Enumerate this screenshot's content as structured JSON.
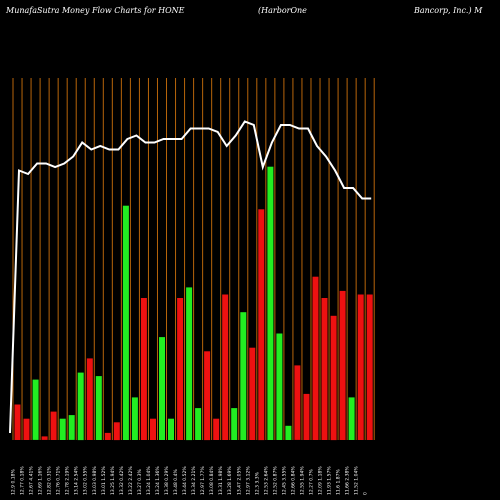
{
  "header": {
    "left": "MunafaSutra  Money Flow  Charts for HONE",
    "middle": "(HarborOne",
    "right": "Bancorp, Inc.) M"
  },
  "colors": {
    "background": "#000000",
    "grid": "#b8650a",
    "up": "#22ee22",
    "down": "#ee1111",
    "price_line": "#ffffff",
    "text": "#ffffff"
  },
  "chart_data": {
    "type": "bar",
    "title": "MunafaSutra  Money Flow  Charts for HONE (HarborOne Bancorp, Inc.) M",
    "grid": true,
    "ylim": [
      0,
      100
    ],
    "price_ylim": [
      0,
      100
    ],
    "categories": [
      "0",
      "12.9 0.18%",
      "12.77 0.18%",
      "12.67 4.41%",
      "12.69 1.16%",
      "12.82 0.31%",
      "12.76 0.71%",
      "12.78 2.19%",
      "13.14 2.54%",
      "13.02 0.55%",
      "13.03 0.98%",
      "13.01 1.52%",
      "13.25 1.94%",
      "13.32 0.42%",
      "13.22 2.42%",
      "13.27 0.3%",
      "13.24 1.04%",
      "13.24 1.36%",
      "13.38 0.29%",
      "13.48 0.4%",
      "13.44 0.52%",
      "13.34 2.21%",
      "12.97 1.77%",
      "13.08 0.84%",
      "13.31 1.98%",
      "13.28 1.69%",
      "13.47 2.05%",
      "12.97 3.12%",
      "12.3 3.3%",
      "12.53 2.64%",
      "12.52 0.87%",
      "12.45 3.55%",
      "12.66 0.84%",
      "12.55 1.94%",
      "12.27 0.7%",
      "12.09 1.18%",
      "11.93 1.57%",
      "11.6 1.87%",
      "11.66 2.38%",
      "11.52 1.04%"
    ],
    "tick_labels": [
      "12.9 0.18%",
      "12.77 0.18%",
      "12.67 4.41%",
      "12.69 1.16%",
      "12.82 0.31%",
      "12.76 0.71%",
      "12.78 2.19%",
      "13.14 2.54%",
      "13.02 0.55%",
      "13.03 0.98%",
      "13.01 1.52%",
      "13.25 1.94%",
      "13.32 0.42%",
      "13.22 2.42%",
      "13.27 0.3%",
      "13.24 1.04%",
      "13.24 1.36%",
      "13.38 0.29%",
      "13.48 0.4%",
      "13.44 0.52%",
      "13.34 2.21%",
      "12.97 1.77%",
      "13.08 0.84%",
      "13.31 1.98%",
      "13.28 1.69%",
      "13.47 2.05%",
      "12.97 3.12%",
      "12.3 3.3%",
      "12.53 2.64%",
      "12.52 0.87%",
      "12.45 3.55%",
      "12.66 0.84%",
      "12.55 1.94%",
      "12.27 0.7%",
      "12.09 1.18%",
      "11.93 1.57%",
      "11.6 1.87%",
      "11.66 2.38%",
      "11.52 1.04%",
      "0"
    ],
    "bars": [
      {
        "value": 10,
        "dir": "down"
      },
      {
        "value": 6,
        "dir": "down"
      },
      {
        "value": 17,
        "dir": "up"
      },
      {
        "value": 1,
        "dir": "down"
      },
      {
        "value": 8,
        "dir": "down"
      },
      {
        "value": 6,
        "dir": "up"
      },
      {
        "value": 7,
        "dir": "up"
      },
      {
        "value": 19,
        "dir": "up"
      },
      {
        "value": 23,
        "dir": "down"
      },
      {
        "value": 18,
        "dir": "up"
      },
      {
        "value": 2,
        "dir": "down"
      },
      {
        "value": 5,
        "dir": "down"
      },
      {
        "value": 66,
        "dir": "up"
      },
      {
        "value": 12,
        "dir": "up"
      },
      {
        "value": 40,
        "dir": "down"
      },
      {
        "value": 6,
        "dir": "down"
      },
      {
        "value": 29,
        "dir": "up"
      },
      {
        "value": 6,
        "dir": "up"
      },
      {
        "value": 40,
        "dir": "down"
      },
      {
        "value": 43,
        "dir": "up"
      },
      {
        "value": 9,
        "dir": "up"
      },
      {
        "value": 25,
        "dir": "down"
      },
      {
        "value": 6,
        "dir": "down"
      },
      {
        "value": 41,
        "dir": "down"
      },
      {
        "value": 9,
        "dir": "up"
      },
      {
        "value": 36,
        "dir": "up"
      },
      {
        "value": 26,
        "dir": "down"
      },
      {
        "value": 65,
        "dir": "down"
      },
      {
        "value": 77,
        "dir": "up"
      },
      {
        "value": 30,
        "dir": "up"
      },
      {
        "value": 4,
        "dir": "up"
      },
      {
        "value": 21,
        "dir": "down"
      },
      {
        "value": 13,
        "dir": "down"
      },
      {
        "value": 46,
        "dir": "down"
      },
      {
        "value": 40,
        "dir": "down"
      },
      {
        "value": 35,
        "dir": "down"
      },
      {
        "value": 42,
        "dir": "down"
      },
      {
        "value": 12,
        "dir": "up"
      },
      {
        "value": 41,
        "dir": "down"
      },
      {
        "value": 41,
        "dir": "down"
      }
    ],
    "price_line": [
      2,
      77,
      76,
      79,
      79,
      78,
      79,
      81,
      85,
      83,
      84,
      83,
      83,
      86,
      87,
      85,
      85,
      86,
      86,
      86,
      89,
      89,
      89,
      88,
      84,
      87,
      91,
      90,
      78,
      85,
      90,
      90,
      89,
      89,
      84,
      81,
      77,
      72,
      72,
      69,
      69
    ]
  }
}
